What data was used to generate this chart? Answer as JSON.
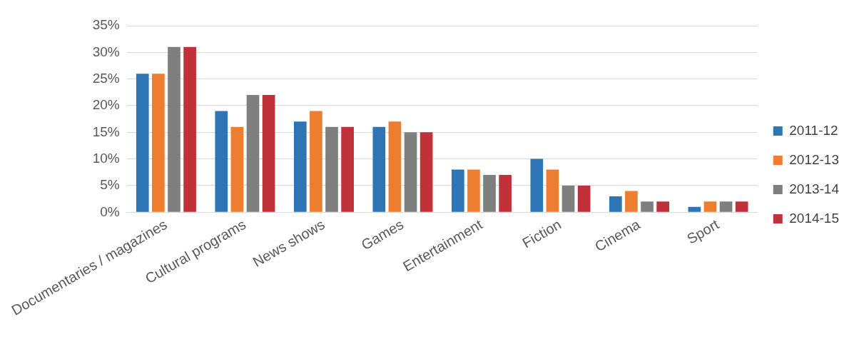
{
  "chart_data": {
    "type": "bar",
    "categories": [
      "Documentaries / magazines",
      "Cultural programs",
      "News shows",
      "Games",
      "Entertainment",
      "Fiction",
      "Cinema",
      "Sport"
    ],
    "series": [
      {
        "name": "2011-12",
        "color": "#2e75b6",
        "values": [
          26,
          19,
          17,
          16,
          8,
          10,
          3,
          1
        ]
      },
      {
        "name": "2012-13",
        "color": "#ed7d31",
        "values": [
          26,
          16,
          19,
          17,
          8,
          8,
          4,
          2
        ]
      },
      {
        "name": "2013-14",
        "color": "#7f7f7f",
        "values": [
          31,
          22,
          16,
          15,
          7,
          5,
          2,
          2
        ]
      },
      {
        "name": "2014-15",
        "color": "#c0313a",
        "values": [
          31,
          22,
          16,
          15,
          7,
          5,
          2,
          2
        ]
      }
    ],
    "ylim": [
      0,
      35
    ],
    "yticks": [
      {
        "value": 0,
        "label": "0%"
      },
      {
        "value": 5,
        "label": "5%"
      },
      {
        "value": 10,
        "label": "10%"
      },
      {
        "value": 15,
        "label": "15%"
      },
      {
        "value": 20,
        "label": "20%"
      },
      {
        "value": 25,
        "label": "25%"
      },
      {
        "value": 30,
        "label": "30%"
      },
      {
        "value": 35,
        "label": "35%"
      }
    ],
    "grid": "y",
    "legend": "right"
  }
}
